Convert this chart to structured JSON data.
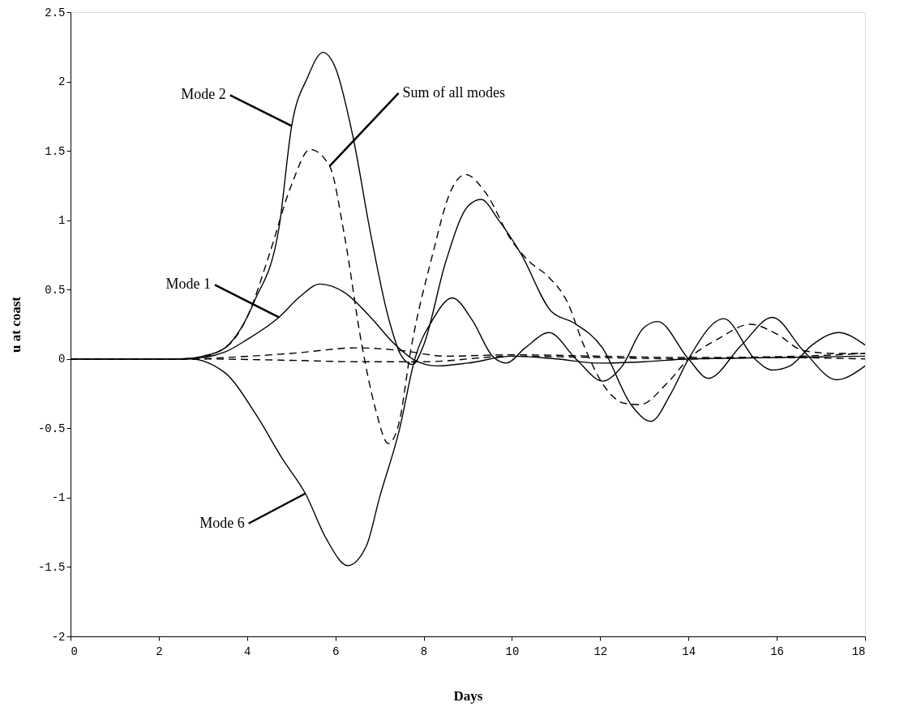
{
  "chart_data": {
    "type": "line",
    "xlabel": "Days",
    "ylabel": "u at coast",
    "xlim": [
      0,
      18
    ],
    "xticks": [
      0,
      2,
      4,
      6,
      8,
      10,
      12,
      14,
      16,
      18
    ],
    "ylim": [
      -2,
      2.5
    ],
    "yticks": [
      -2,
      -1.5,
      -1,
      -0.5,
      0,
      0.5,
      1,
      1.5,
      2,
      2.5
    ],
    "grid": false,
    "series": [
      {
        "color": "#000000",
        "line_style": "solid",
        "x": [
          0,
          2.5,
          3.0,
          3.5,
          3.86,
          4.17,
          4.72,
          5.01,
          5.37,
          5.72,
          6.0,
          6.4,
          6.8,
          7.2,
          7.5,
          7.75,
          8.0,
          8.5,
          9.0,
          9.3,
          9.7,
          10.2,
          10.9,
          11.4,
          12.05,
          12.7,
          13.15,
          13.6,
          14.0,
          14.8,
          15.5,
          15.9,
          16.3,
          16.8,
          17.4,
          18
        ],
        "values": [
          0,
          0,
          0.02,
          0.08,
          0.22,
          0.42,
          0.94,
          1.68,
          2.03,
          2.21,
          2.1,
          1.6,
          0.9,
          0.3,
          0.02,
          -0.04,
          0.1,
          0.7,
          1.1,
          1.15,
          1.0,
          0.76,
          0.34,
          0.26,
          0.08,
          -0.33,
          -0.45,
          -0.25,
          0.0,
          0.29,
          0.0,
          -0.08,
          -0.05,
          0.1,
          0.19,
          0.1
        ]
      },
      {
        "color": "#000000",
        "line_style": "solid",
        "x": [
          0,
          2.5,
          3.0,
          3.5,
          4.0,
          4.72,
          5.2,
          5.65,
          6.2,
          6.8,
          7.3,
          7.75,
          8.3,
          9.0,
          10.0,
          11.0,
          12.0,
          13.0,
          14.0,
          16.0,
          18.0
        ],
        "values": [
          0,
          0,
          0.01,
          0.05,
          0.14,
          0.3,
          0.45,
          0.54,
          0.48,
          0.3,
          0.12,
          0.0,
          -0.05,
          -0.03,
          0.02,
          0.0,
          -0.03,
          -0.02,
          0.0,
          0.01,
          0.02
        ]
      },
      {
        "color": "#000000",
        "line_style": "solid",
        "x": [
          0,
          2.7,
          3.5,
          4.2,
          4.8,
          5.32,
          5.8,
          6.28,
          6.7,
          7.0,
          7.45,
          7.8,
          8.2,
          8.65,
          9.1,
          9.56,
          9.87,
          10.3,
          10.84,
          11.45,
          12.06,
          12.5,
          12.97,
          13.3,
          14.0,
          14.45,
          15.2,
          15.9,
          16.6,
          17.35,
          18
        ],
        "values": [
          0,
          0,
          -0.1,
          -0.4,
          -0.72,
          -0.97,
          -1.3,
          -1.49,
          -1.35,
          -1.0,
          -0.51,
          0.0,
          0.28,
          0.44,
          0.28,
          0.02,
          -0.03,
          0.08,
          0.19,
          0.0,
          -0.16,
          -0.05,
          0.22,
          0.27,
          0.0,
          -0.14,
          0.1,
          0.3,
          0.06,
          -0.15,
          -0.05
        ]
      },
      {
        "color": "#000000",
        "line_style": "dashed",
        "x": [
          0,
          2.7,
          3.5,
          4.0,
          4.5,
          5.0,
          5.43,
          5.87,
          6.2,
          6.6,
          6.9,
          7.2,
          7.45,
          7.7,
          8.2,
          8.6,
          8.95,
          9.4,
          10.0,
          10.4,
          10.8,
          11.27,
          11.6,
          12.1,
          12.55,
          12.9,
          13.5,
          14.0,
          14.7,
          15.4,
          16.0,
          16.6,
          17.3,
          18
        ],
        "values": [
          0,
          0,
          0.08,
          0.3,
          0.75,
          1.25,
          1.51,
          1.39,
          0.9,
          0.1,
          -0.35,
          -0.61,
          -0.45,
          0.05,
          0.75,
          1.2,
          1.33,
          1.2,
          0.85,
          0.7,
          0.6,
          0.4,
          0.12,
          -0.2,
          -0.32,
          -0.33,
          -0.18,
          0.0,
          0.15,
          0.25,
          0.18,
          0.06,
          0.04,
          0.04
        ]
      },
      {
        "color": "#000000",
        "line_style": "dashed",
        "x": [
          0,
          2.8,
          3.5,
          5.0,
          6.5,
          7.5,
          8.5,
          10.0,
          12.0,
          14.0,
          16.5,
          18.0
        ],
        "values": [
          0,
          0,
          0.01,
          0.04,
          0.08,
          0.06,
          0.02,
          0.03,
          0.02,
          0.01,
          0.02,
          0.04
        ]
      },
      {
        "color": "#000000",
        "line_style": "dashed",
        "x": [
          0,
          2.8,
          5.0,
          6.5,
          8.0,
          10.0,
          12.0,
          14.0,
          16.0,
          18.0
        ],
        "values": [
          0,
          0,
          -0.01,
          -0.02,
          -0.02,
          0.02,
          0.01,
          0.0,
          0.01,
          0.0
        ]
      }
    ],
    "annotations": [
      {
        "text": "Mode 2",
        "x": 5.01,
        "y": 1.68
      },
      {
        "text": "Sum of all modes",
        "x": 5.87,
        "y": 1.39
      },
      {
        "text": "Mode 1",
        "x": 4.72,
        "y": 0.3
      },
      {
        "text": "Mode 6",
        "x": 5.32,
        "y": -0.97
      }
    ]
  }
}
